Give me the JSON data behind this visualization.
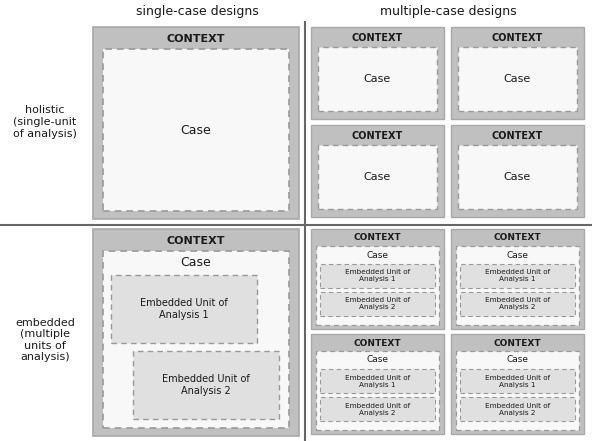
{
  "title_left": "single-case designs",
  "title_right": "multiple-case designs",
  "row_label_top": "holistic\n(single-unit\nof analysis)",
  "row_label_bottom": "embedded\n(multiple\nunits of\nanalysis)",
  "bg_color": "#ffffff",
  "gray_outer": "#c0c0c0",
  "gray_darker": "#a8a8a8",
  "white_inner": "#f8f8f8",
  "embedded_fill": "#e0e0e0",
  "dash_color": "#999999",
  "divider_color": "#666666",
  "text_dark": "#1a1a1a"
}
